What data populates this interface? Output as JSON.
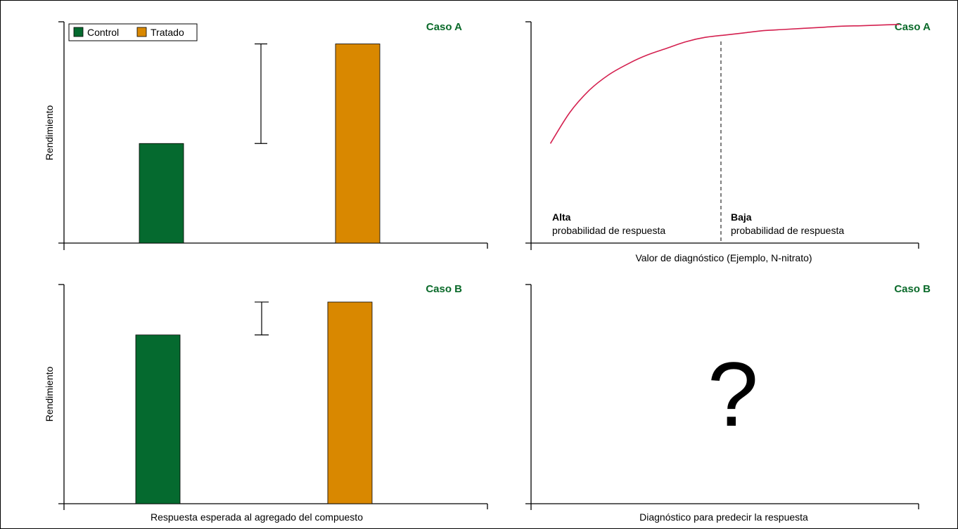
{
  "colors": {
    "control": "#056a2f",
    "tratado": "#d98800",
    "curve": "#d4204f",
    "case_label": "#0a6a2a"
  },
  "legend": {
    "control": "Control",
    "tratado": "Tratado"
  },
  "chart_data": [
    {
      "type": "bar",
      "panel": "top-left",
      "case_label": "Caso A",
      "ylabel": "Rendimiento",
      "xlabel": "",
      "categories": [
        "Control",
        "Tratado"
      ],
      "values": [
        4.5,
        9.0
      ],
      "ylim": [
        0,
        10
      ],
      "range_marker": [
        4.5,
        9.0
      ],
      "legend_position": "top-left"
    },
    {
      "type": "line",
      "panel": "top-right",
      "case_label": "Caso A",
      "xlabel": "Valor de diagnóstico (Ejemplo, N-nitrato)",
      "ylabel": "",
      "x": [
        0.5,
        1.0,
        1.5,
        2.0,
        2.5,
        3.0,
        3.5,
        4.0,
        4.5,
        5.0,
        5.5,
        6.0,
        6.5,
        7.0,
        7.5,
        8.0,
        8.5,
        9.0,
        9.5
      ],
      "y": [
        4.5,
        5.9,
        6.9,
        7.6,
        8.1,
        8.5,
        8.8,
        9.1,
        9.3,
        9.4,
        9.5,
        9.6,
        9.65,
        9.7,
        9.75,
        9.8,
        9.82,
        9.85,
        9.88
      ],
      "xlim": [
        0,
        10
      ],
      "ylim": [
        0,
        10
      ],
      "threshold_x": 4.9,
      "annotations": {
        "left_title": "Alta",
        "left_sub": "probabilidad de respuesta",
        "right_title": "Baja",
        "right_sub": "probabilidad de respuesta"
      }
    },
    {
      "type": "bar",
      "panel": "bottom-left",
      "case_label": "Caso B",
      "ylabel": "Rendimiento",
      "xlabel": "Respuesta esperada al agregado del compuesto",
      "categories": [
        "Control",
        "Tratado"
      ],
      "values": [
        7.7,
        9.2
      ],
      "ylim": [
        0,
        10
      ],
      "range_marker": [
        7.7,
        9.2
      ]
    },
    {
      "type": "other",
      "panel": "bottom-right",
      "case_label": "Caso B",
      "xlabel": "Diagnóstico para predecir la respuesta",
      "ylabel": "",
      "center_text": "?"
    }
  ]
}
